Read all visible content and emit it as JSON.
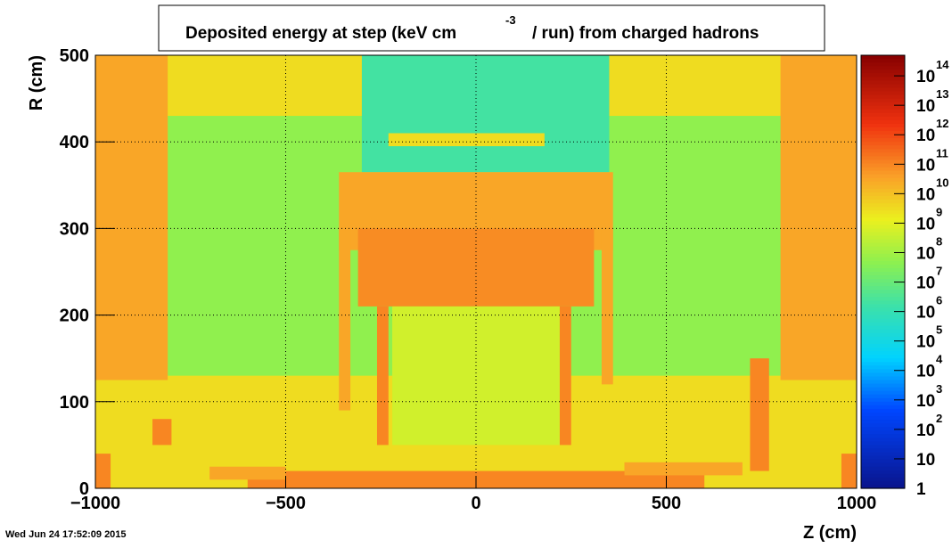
{
  "chart_data": {
    "type": "heatmap",
    "title": {
      "text": "Deposited energy at step (keV cm",
      "superscript": "-3",
      "text_after": "/ run)  from   charged hadrons"
    },
    "x_label": "Z (cm)",
    "y_label": "R (cm)",
    "timestamp": "Wed Jun 24 17:52:09 2015",
    "xlim": [
      -1000,
      1000
    ],
    "ylim": [
      0,
      500
    ],
    "xticks": [
      {
        "value": -1000,
        "label": "−1000"
      },
      {
        "value": -500,
        "label": "−500"
      },
      0,
      500,
      1000
    ],
    "yticks": [
      0,
      100,
      200,
      300,
      400,
      500
    ],
    "grid": true,
    "zlog": true,
    "zlim": [
      1,
      500000000000000
    ],
    "zticks": [
      1,
      10,
      {
        "value": 100,
        "label": "10",
        "exponent": "2"
      },
      {
        "value": 1000,
        "label": "10",
        "exponent": "3"
      },
      {
        "value": 10000,
        "label": "10",
        "exponent": "4"
      },
      {
        "value": 100000,
        "label": "10",
        "exponent": "5"
      },
      {
        "value": 1000000,
        "label": "10",
        "exponent": "6"
      },
      {
        "value": 10000000,
        "label": "10",
        "exponent": "7"
      },
      {
        "value": 100000000,
        "label": "10",
        "exponent": "8"
      },
      {
        "value": 1000000000,
        "label": "10",
        "exponent": "9"
      },
      {
        "value": 10000000000,
        "label": "10",
        "exponent": "10"
      },
      {
        "value": 100000000000,
        "label": "10",
        "exponent": "11"
      },
      {
        "value": 1000000000000,
        "label": "10",
        "exponent": "12"
      },
      {
        "value": 10000000000000,
        "label": "10",
        "exponent": "13"
      },
      {
        "value": 100000000000000,
        "label": "10",
        "exponent": "14"
      }
    ],
    "regions": [
      {
        "x": [
          -1000,
          1000
        ],
        "y": [
          0,
          500
        ],
        "value": 3000000000
      },
      {
        "x": [
          -810,
          810
        ],
        "y": [
          130,
          430
        ],
        "value": 50000000
      },
      {
        "x": [
          -300,
          350
        ],
        "y": [
          365,
          500
        ],
        "value": 2000000
      },
      {
        "x": [
          -230,
          180
        ],
        "y": [
          395,
          410
        ],
        "value": 3000000000
      },
      {
        "x": [
          -1000,
          -810
        ],
        "y": [
          125,
          500
        ],
        "value": 30000000000
      },
      {
        "x": [
          800,
          1000
        ],
        "y": [
          125,
          500
        ],
        "value": 30000000000
      },
      {
        "x": [
          -360,
          360
        ],
        "y": [
          275,
          365
        ],
        "value": 30000000000
      },
      {
        "x": [
          -310,
          310
        ],
        "y": [
          210,
          300
        ],
        "value": 80000000000
      },
      {
        "x": [
          -360,
          -330
        ],
        "y": [
          90,
          300
        ],
        "value": 30000000000
      },
      {
        "x": [
          330,
          360
        ],
        "y": [
          120,
          300
        ],
        "value": 30000000000
      },
      {
        "x": [
          -220,
          220
        ],
        "y": [
          50,
          210
        ],
        "value": 500000000
      },
      {
        "x": [
          -260,
          -230
        ],
        "y": [
          50,
          210
        ],
        "value": 100000000000
      },
      {
        "x": [
          220,
          250
        ],
        "y": [
          50,
          210
        ],
        "value": 100000000000
      },
      {
        "x": [
          -600,
          600
        ],
        "y": [
          0,
          20
        ],
        "value": 100000000000
      },
      {
        "x": [
          -850,
          -800
        ],
        "y": [
          50,
          80
        ],
        "value": 100000000000
      },
      {
        "x": [
          -1000,
          -960
        ],
        "y": [
          0,
          40
        ],
        "value": 100000000000
      },
      {
        "x": [
          960,
          1000
        ],
        "y": [
          0,
          40
        ],
        "value": 100000000000
      },
      {
        "x": [
          720,
          770
        ],
        "y": [
          20,
          150
        ],
        "value": 100000000000
      },
      {
        "x": [
          -700,
          -500
        ],
        "y": [
          10,
          25
        ],
        "value": 30000000000
      },
      {
        "x": [
          390,
          700
        ],
        "y": [
          15,
          30
        ],
        "value": 30000000000
      }
    ]
  }
}
